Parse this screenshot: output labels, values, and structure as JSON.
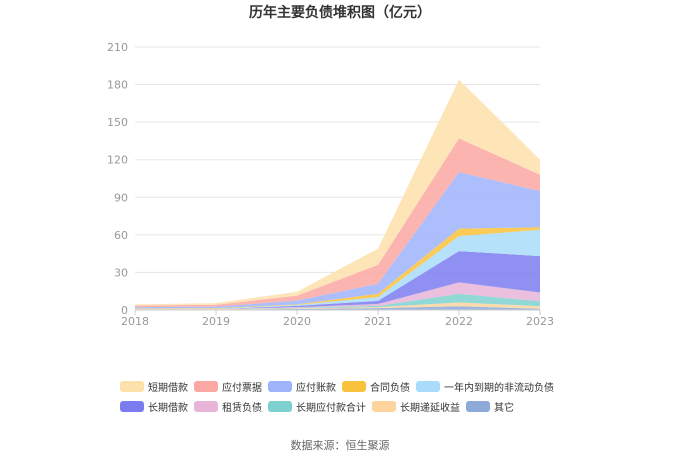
{
  "chart_data": {
    "type": "area",
    "stacked": true,
    "title": "历年主要负债堆积图（亿元）",
    "x": [
      "2018",
      "2019",
      "2020",
      "2021",
      "2022",
      "2023"
    ],
    "yticks": [
      "0",
      "30",
      "60",
      "90",
      "120",
      "150",
      "180",
      "210"
    ],
    "ylim": [
      0,
      210
    ],
    "grid": true,
    "legend_position": "bottom",
    "series": [
      {
        "name": "其它",
        "color": "#8eaadb",
        "values": [
          0.5,
          0.5,
          0.8,
          1.5,
          3.0,
          1.0
        ]
      },
      {
        "name": "长期递延收益",
        "color": "#fdd49e",
        "values": [
          0.3,
          0.3,
          0.5,
          0.8,
          3.0,
          2.0
        ]
      },
      {
        "name": "长期应付款合计",
        "color": "#7fd1cf",
        "values": [
          0,
          0,
          0.5,
          1.0,
          7.0,
          4.0
        ]
      },
      {
        "name": "租赁负债",
        "color": "#e8b4d8",
        "values": [
          0,
          0,
          0.5,
          1.5,
          9.0,
          7.0
        ]
      },
      {
        "name": "长期借款",
        "color": "#7b7cf0",
        "values": [
          0,
          0,
          1.0,
          2.5,
          25.0,
          29.0
        ]
      },
      {
        "name": "一年内到期的非流动负债",
        "color": "#a8dcfa",
        "values": [
          0.2,
          0.3,
          0.7,
          3.0,
          12.0,
          21.0
        ]
      },
      {
        "name": "合同负债",
        "color": "#f9c23c",
        "values": [
          0.3,
          0.4,
          0.5,
          2.7,
          6.0,
          2.0
        ]
      },
      {
        "name": "应付账款",
        "color": "#9db4fb",
        "values": [
          1.0,
          1.2,
          3.0,
          8.0,
          45.0,
          29.0
        ]
      },
      {
        "name": "应付票据",
        "color": "#fba7a3",
        "values": [
          1.2,
          1.5,
          4.0,
          15.0,
          27.0,
          13.0
        ]
      },
      {
        "name": "短期借款",
        "color": "#fee0aa",
        "values": [
          1.0,
          1.3,
          3.0,
          13.0,
          47.0,
          12.0
        ]
      }
    ],
    "legend_order": [
      "短期借款",
      "应付票据",
      "应付账款",
      "合同负债",
      "一年内到期的非流动负债",
      "长期借款",
      "租赁负债",
      "长期应付款合计",
      "长期递延收益",
      "其它"
    ]
  },
  "source": "数据来源：恒生聚源"
}
